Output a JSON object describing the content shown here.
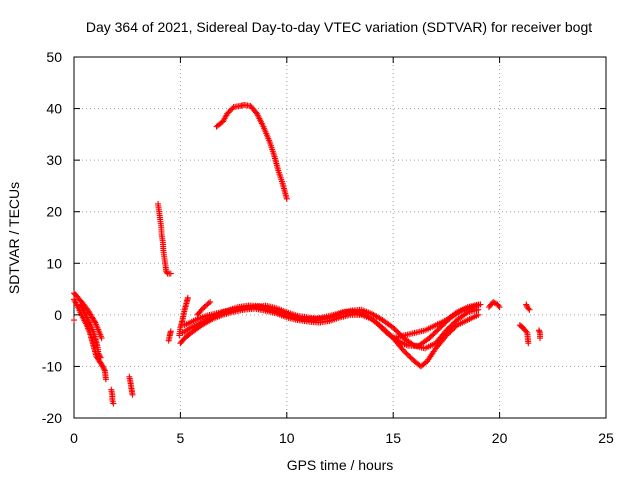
{
  "chart_data": {
    "type": "scatter",
    "title": "Day 364 of 2021, Sidereal Day-to-day VTEC variation (SDTVAR) for receiver bogt",
    "xlabel": "GPS time / hours",
    "ylabel": "SDTVAR / TECUs",
    "xlim": [
      0,
      25
    ],
    "ylim": [
      -20,
      50
    ],
    "xticks": [
      0,
      5,
      10,
      15,
      20,
      25
    ],
    "yticks": [
      -20,
      -10,
      0,
      10,
      20,
      30,
      40,
      50
    ],
    "grid": true,
    "marker": "plus",
    "color": "#ff0000",
    "series": [
      {
        "name": "bogt",
        "tracks": [
          [
            [
              0.0,
              4.2
            ],
            [
              0.1,
              3.8
            ],
            [
              0.25,
              3.0
            ],
            [
              0.4,
              2.3
            ],
            [
              0.55,
              1.5
            ],
            [
              0.7,
              0.6
            ],
            [
              0.85,
              -0.5
            ],
            [
              1.0,
              -1.5
            ],
            [
              1.1,
              -2.5
            ],
            [
              1.2,
              -3.5
            ],
            [
              1.3,
              -4.5
            ]
          ],
          [
            [
              0.0,
              3.0
            ],
            [
              0.15,
              1.8
            ],
            [
              0.3,
              0.5
            ],
            [
              0.45,
              -0.8
            ],
            [
              0.6,
              -2.0
            ],
            [
              0.75,
              -3.5
            ],
            [
              0.85,
              -5.0
            ],
            [
              0.95,
              -6.5
            ],
            [
              1.05,
              -8.0
            ],
            [
              1.2,
              -9.0
            ],
            [
              1.35,
              -10.0
            ],
            [
              1.45,
              -10.8
            ],
            [
              1.5,
              -12.5
            ]
          ],
          [
            [
              0.3,
              2.0
            ],
            [
              0.45,
              0.8
            ],
            [
              0.6,
              -0.5
            ],
            [
              0.75,
              -1.8
            ],
            [
              0.9,
              -3.2
            ],
            [
              1.0,
              -4.5
            ],
            [
              1.1,
              -6.0
            ],
            [
              1.15,
              -7.5
            ],
            [
              1.25,
              -8.3
            ]
          ],
          [
            [
              0.0,
              -1.0
            ]
          ],
          [
            [
              1.75,
              -14.5
            ],
            [
              1.8,
              -15.5
            ],
            [
              1.8,
              -16.5
            ],
            [
              1.85,
              -17.2
            ]
          ],
          [
            [
              2.6,
              -12.0
            ],
            [
              2.65,
              -13.0
            ],
            [
              2.7,
              -14.3
            ],
            [
              2.75,
              -15.5
            ]
          ],
          [
            [
              3.95,
              21.5
            ],
            [
              4.0,
              20.0
            ],
            [
              4.05,
              18.5
            ],
            [
              4.1,
              17.0
            ],
            [
              4.12,
              15.5
            ],
            [
              4.18,
              14.0
            ],
            [
              4.2,
              12.5
            ],
            [
              4.25,
              11.0
            ],
            [
              4.3,
              9.5
            ],
            [
              4.33,
              8.5
            ],
            [
              4.4,
              8.0
            ],
            [
              4.55,
              8.0
            ]
          ],
          [
            [
              4.45,
              -5.0
            ],
            [
              4.5,
              -4.0
            ],
            [
              4.55,
              -3.2
            ]
          ],
          [
            [
              4.95,
              -4.0
            ],
            [
              5.0,
              -2.5
            ],
            [
              5.1,
              -1.0
            ],
            [
              5.2,
              1.0
            ],
            [
              5.3,
              2.5
            ],
            [
              5.35,
              3.3
            ]
          ],
          [
            [
              5.0,
              -5.5
            ],
            [
              5.2,
              -4.5
            ],
            [
              5.5,
              -3.5
            ],
            [
              6.0,
              -2.0
            ],
            [
              6.5,
              -0.8
            ],
            [
              7.0,
              0.0
            ],
            [
              7.5,
              0.6
            ],
            [
              8.0,
              1.0
            ],
            [
              8.5,
              1.2
            ],
            [
              9.0,
              0.8
            ],
            [
              9.5,
              0.3
            ],
            [
              10.0,
              -0.5
            ],
            [
              10.5,
              -1.0
            ],
            [
              11.0,
              -1.3
            ],
            [
              11.5,
              -1.5
            ],
            [
              12.0,
              -1.2
            ],
            [
              12.5,
              -0.5
            ],
            [
              13.0,
              0.0
            ],
            [
              13.5,
              0.0
            ],
            [
              14.0,
              -0.8
            ],
            [
              14.5,
              -2.5
            ],
            [
              15.0,
              -4.5
            ],
            [
              15.5,
              -7.0
            ],
            [
              16.0,
              -9.0
            ],
            [
              16.3,
              -10.0
            ],
            [
              16.6,
              -9.0
            ],
            [
              17.0,
              -6.5
            ],
            [
              17.5,
              -4.0
            ],
            [
              18.0,
              -2.0
            ],
            [
              18.5,
              -1.0
            ],
            [
              19.0,
              0.0
            ]
          ],
          [
            [
              5.1,
              -3.5
            ],
            [
              5.5,
              -2.5
            ],
            [
              6.0,
              -1.5
            ],
            [
              6.5,
              -0.5
            ],
            [
              7.0,
              0.5
            ],
            [
              7.5,
              1.0
            ],
            [
              8.0,
              1.3
            ],
            [
              8.5,
              1.5
            ],
            [
              9.0,
              1.8
            ],
            [
              9.5,
              1.3
            ],
            [
              10.0,
              0.5
            ],
            [
              10.5,
              -0.2
            ],
            [
              11.0,
              -0.5
            ],
            [
              11.5,
              -0.8
            ],
            [
              12.0,
              -0.6
            ],
            [
              12.5,
              0.2
            ],
            [
              13.0,
              0.8
            ],
            [
              13.5,
              1.0
            ],
            [
              14.0,
              0.2
            ],
            [
              14.5,
              -1.0
            ],
            [
              15.0,
              -2.5
            ],
            [
              15.5,
              -4.5
            ],
            [
              16.0,
              -6.0
            ],
            [
              16.5,
              -6.5
            ],
            [
              17.0,
              -5.5
            ],
            [
              17.5,
              -3.0
            ],
            [
              18.0,
              -1.0
            ],
            [
              18.5,
              0.5
            ],
            [
              19.0,
              1.0
            ]
          ],
          [
            [
              5.2,
              -2.0
            ],
            [
              5.7,
              -1.0
            ],
            [
              6.2,
              -0.2
            ],
            [
              6.7,
              0.3
            ],
            [
              7.2,
              0.8
            ],
            [
              7.7,
              1.5
            ],
            [
              8.2,
              1.8
            ],
            [
              8.7,
              1.7
            ],
            [
              9.2,
              1.0
            ],
            [
              9.7,
              0.5
            ],
            [
              10.2,
              -0.2
            ],
            [
              10.7,
              -0.8
            ],
            [
              11.2,
              -0.8
            ],
            [
              11.7,
              -0.5
            ],
            [
              12.2,
              0.0
            ],
            [
              12.7,
              0.6
            ],
            [
              13.2,
              0.6
            ],
            [
              13.7,
              0.0
            ],
            [
              14.2,
              -1.5
            ],
            [
              14.7,
              -3.5
            ],
            [
              15.2,
              -5.0
            ],
            [
              15.7,
              -6.0
            ],
            [
              16.2,
              -6.0
            ],
            [
              16.7,
              -4.5
            ],
            [
              17.2,
              -2.5
            ],
            [
              17.7,
              -0.5
            ],
            [
              18.2,
              0.8
            ],
            [
              18.7,
              1.5
            ],
            [
              19.1,
              2.0
            ]
          ],
          [
            [
              5.8,
              0.0
            ],
            [
              6.0,
              1.0
            ],
            [
              6.2,
              1.8
            ],
            [
              6.4,
              2.5
            ]
          ],
          [
            [
              6.7,
              36.5
            ],
            [
              7.0,
              37.5
            ],
            [
              7.2,
              39.0
            ],
            [
              7.5,
              40.3
            ],
            [
              7.8,
              40.5
            ],
            [
              8.0,
              40.7
            ],
            [
              8.3,
              40.5
            ],
            [
              8.6,
              39.0
            ],
            [
              8.9,
              36.5
            ],
            [
              9.2,
              33.5
            ],
            [
              9.4,
              31.0
            ],
            [
              9.6,
              28.0
            ],
            [
              9.8,
              25.5
            ],
            [
              10.0,
              22.5
            ]
          ],
          [
            [
              15.0,
              -4.5
            ],
            [
              15.5,
              -4.0
            ],
            [
              16.0,
              -3.5
            ],
            [
              16.5,
              -3.0
            ],
            [
              17.0,
              -2.0
            ],
            [
              17.5,
              -1.0
            ],
            [
              18.0,
              0.5
            ],
            [
              18.5,
              1.5
            ],
            [
              19.0,
              2.0
            ]
          ],
          [
            [
              19.5,
              1.5
            ],
            [
              19.7,
              2.5
            ],
            [
              19.9,
              2.0
            ],
            [
              20.0,
              1.5
            ]
          ],
          [
            [
              20.95,
              -2.0
            ],
            [
              21.1,
              -2.5
            ],
            [
              21.2,
              -3.0
            ],
            [
              21.3,
              -3.5
            ],
            [
              21.35,
              -5.5
            ]
          ],
          [
            [
              21.25,
              2.0
            ],
            [
              21.3,
              1.5
            ],
            [
              21.4,
              1.0
            ]
          ],
          [
            [
              21.85,
              -3.0
            ],
            [
              21.9,
              -3.5
            ],
            [
              21.9,
              -4.5
            ]
          ]
        ]
      }
    ]
  }
}
